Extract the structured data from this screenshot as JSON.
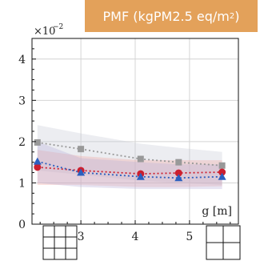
{
  "header": {
    "prefix": "PMF (kgPM2.5 eq/m",
    "sup": "2",
    "suffix": ")"
  },
  "chart_data": {
    "type": "line",
    "title": "PMF (kgPM2.5 eq/m2)",
    "xlabel": "g [m]",
    "ylabel": "",
    "y_multiplier": "×10",
    "y_multiplier_exp": "−2",
    "xlim": [
      2.1,
      5.9
    ],
    "ylim": [
      0,
      4.5
    ],
    "xticks": [
      3,
      4,
      5
    ],
    "yticks": [
      0,
      1,
      2,
      3,
      4
    ],
    "grid": true,
    "x": [
      2.2,
      3.0,
      4.1,
      4.8,
      5.6
    ],
    "series": [
      {
        "marker": "square",
        "color": "#999999",
        "linestyle": "dotted",
        "values": [
          1.98,
          1.82,
          1.58,
          1.5,
          1.42
        ],
        "band_low": [
          1.3,
          1.2,
          1.05,
          1.0,
          0.95
        ],
        "band_high": [
          2.4,
          2.2,
          1.95,
          1.85,
          1.75
        ],
        "band_color": "#c8ccd6"
      },
      {
        "marker": "circle",
        "color": "#cc1f2f",
        "linestyle": "dotted",
        "values": [
          1.38,
          1.3,
          1.22,
          1.24,
          1.26
        ],
        "band_low": [
          0.95,
          0.95,
          0.9,
          0.9,
          0.92
        ],
        "band_high": [
          1.8,
          1.65,
          1.55,
          1.55,
          1.55
        ],
        "band_color": "#f0a6a0"
      },
      {
        "marker": "triangle",
        "color": "#2b5fbf",
        "linestyle": "dotted",
        "values": [
          1.52,
          1.25,
          1.15,
          1.12,
          1.15
        ],
        "band_low": [
          1.0,
          0.9,
          0.85,
          0.85,
          0.85
        ],
        "band_high": [
          2.0,
          1.6,
          1.5,
          1.45,
          1.45
        ],
        "band_color": "#b9b3d9"
      }
    ]
  }
}
